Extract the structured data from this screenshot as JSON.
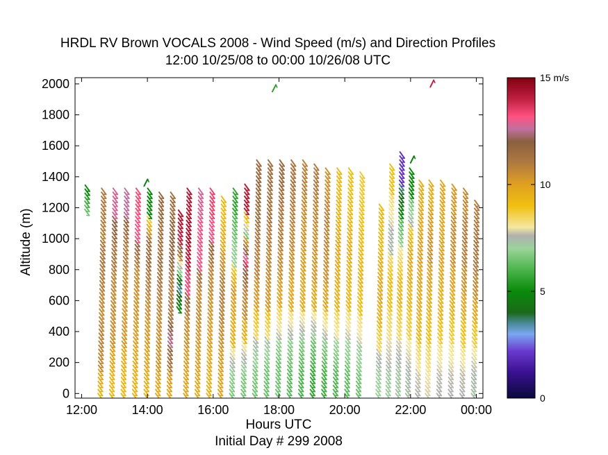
{
  "chart_data": {
    "type": "heatmap",
    "title": "HRDL RV Brown VOCALS 2008 - Wind Speed (m/s) and Direction Profiles",
    "subtitle": "12:00 10/25/08 to 00:00 10/26/08  UTC",
    "xlabel": "Hours UTC",
    "ylabel": "Altitude (m)",
    "note": "Initial Day # 299  2008",
    "xlim": [
      11.8,
      24.2
    ],
    "ylim": [
      -30,
      2040
    ],
    "x_ticks": [
      {
        "value": 12,
        "label": "12:00"
      },
      {
        "value": 14,
        "label": "14:00"
      },
      {
        "value": 16,
        "label": "16:00"
      },
      {
        "value": 18,
        "label": "18:00"
      },
      {
        "value": 20,
        "label": "20:00"
      },
      {
        "value": 22,
        "label": "22:00"
      },
      {
        "value": 24,
        "label": "00:00"
      }
    ],
    "y_ticks": [
      0,
      200,
      400,
      600,
      800,
      1000,
      1200,
      1400,
      1600,
      1800,
      2000
    ],
    "y_tick_labels": [
      "0",
      "200",
      "400",
      "600",
      "800",
      "1000",
      "1200",
      "1400",
      "1600",
      "1800",
      "2000"
    ],
    "colorbar": {
      "range": [
        0,
        15
      ],
      "ticks": [
        {
          "value": 0,
          "label": "0"
        },
        {
          "value": 5,
          "label": "5"
        },
        {
          "value": 10,
          "label": "10"
        },
        {
          "value": 15,
          "label": "15 m/s"
        }
      ],
      "stops": [
        {
          "v": 0,
          "color": "#0a0a3c"
        },
        {
          "v": 1.2,
          "color": "#3a1090"
        },
        {
          "v": 2.2,
          "color": "#6a3ad0"
        },
        {
          "v": 3.0,
          "color": "#7aa8f0"
        },
        {
          "v": 3.5,
          "color": "#4a8a9a"
        },
        {
          "v": 4.0,
          "color": "#1a6a1a"
        },
        {
          "v": 5.0,
          "color": "#0a8a0a"
        },
        {
          "v": 6.0,
          "color": "#4ab44a"
        },
        {
          "v": 7.0,
          "color": "#9ad49a"
        },
        {
          "v": 7.6,
          "color": "#b0b0b0"
        },
        {
          "v": 8.0,
          "color": "#f4e8a0"
        },
        {
          "v": 9.0,
          "color": "#f0c010"
        },
        {
          "v": 10.0,
          "color": "#e0a020"
        },
        {
          "v": 11.0,
          "color": "#b07a40"
        },
        {
          "v": 12.0,
          "color": "#8a6040"
        },
        {
          "v": 12.6,
          "color": "#c070a0"
        },
        {
          "v": 13.2,
          "color": "#ff5080"
        },
        {
          "v": 14.0,
          "color": "#c02040"
        },
        {
          "v": 15.0,
          "color": "#800010"
        }
      ]
    },
    "profiles": [
      {
        "t": 12.0,
        "bottom": 1190,
        "top": 1350,
        "speed": [
          6.5,
          6.0,
          5.5,
          5.0
        ]
      },
      {
        "t": 12.5,
        "bottom": 0,
        "top": 1340,
        "speed": [
          9.2,
          10.6,
          10.8,
          10.5,
          10.8,
          11.2,
          10.8,
          11.0
        ]
      },
      {
        "t": 12.85,
        "bottom": 0,
        "top": 1330,
        "speed": [
          9.2,
          9.6,
          10.4,
          10.5,
          10.6,
          11.0,
          11.5,
          12.8
        ]
      },
      {
        "t": 13.2,
        "bottom": 0,
        "top": 1330,
        "speed": [
          9.2,
          9.4,
          10.2,
          10.2,
          10.4,
          10.8,
          11.2,
          12.6
        ]
      },
      {
        "t": 13.55,
        "bottom": 0,
        "top": 1340,
        "speed": [
          9.4,
          9.6,
          10.0,
          10.3,
          10.4,
          10.8,
          13.0,
          13.3
        ]
      },
      {
        "t": 13.9,
        "bottom": 0,
        "top": 1330,
        "speed": [
          9.4,
          9.8,
          10.1,
          10.4,
          10.8,
          11.4,
          11.6,
          5.0
        ]
      },
      {
        "t": 14.25,
        "bottom": 0,
        "top": 1320,
        "speed": [
          9.6,
          10.3,
          10.4,
          10.6,
          11.0,
          11.4,
          11.2,
          11.6
        ]
      },
      {
        "t": 14.6,
        "bottom": 0,
        "top": 1310,
        "speed": [
          9.6,
          11.0,
          12.6,
          11.2,
          10.8,
          11.6,
          11.8,
          11.4
        ]
      },
      {
        "t": 14.85,
        "bottom": 560,
        "top": 1200,
        "speed": [
          5.0,
          3.0,
          6.0,
          10.5,
          14.0,
          14.2
        ]
      },
      {
        "t": 15.1,
        "bottom": 0,
        "top": 1330,
        "speed": [
          9.8,
          10.0,
          10.4,
          10.6,
          13.2,
          14.0,
          14.4,
          14.2
        ]
      },
      {
        "t": 15.45,
        "bottom": 0,
        "top": 1330,
        "speed": [
          9.6,
          10.0,
          10.2,
          10.6,
          10.4,
          13.0,
          13.2,
          12.8
        ]
      },
      {
        "t": 15.8,
        "bottom": 0,
        "top": 1330,
        "speed": [
          9.4,
          9.6,
          10.0,
          10.2,
          10.6,
          10.8,
          13.0,
          13.4
        ]
      },
      {
        "t": 16.15,
        "bottom": 0,
        "top": 1280,
        "speed": [
          9.8,
          10.0,
          10.4,
          10.8,
          11.0,
          10.6,
          9.6,
          9.2
        ]
      },
      {
        "t": 16.5,
        "bottom": 0,
        "top": 1340,
        "speed": [
          6.6,
          7.2,
          9.4,
          9.8,
          10.4,
          7.0,
          6.6,
          5.6
        ]
      },
      {
        "t": 16.85,
        "bottom": 0,
        "top": 1360,
        "speed": [
          6.5,
          7.0,
          9.2,
          10.6,
          10.8,
          14.0,
          6.0,
          14.2
        ]
      },
      {
        "t": 17.2,
        "bottom": 0,
        "top": 1520,
        "speed": [
          6.5,
          6.8,
          8.4,
          10.0,
          10.8,
          11.0,
          11.4,
          11.6
        ]
      },
      {
        "t": 17.55,
        "bottom": 0,
        "top": 1520,
        "speed": [
          6.4,
          6.6,
          8.2,
          10.2,
          10.6,
          10.8,
          11.2,
          11.4
        ]
      },
      {
        "t": 17.9,
        "bottom": 0,
        "top": 1530,
        "speed": [
          6.5,
          6.4,
          7.6,
          9.8,
          10.4,
          10.8,
          11.0,
          11.6
        ]
      },
      {
        "t": 18.25,
        "bottom": 0,
        "top": 1520,
        "speed": [
          6.2,
          6.4,
          7.4,
          9.6,
          10.2,
          10.6,
          10.8,
          11.2
        ]
      },
      {
        "t": 18.6,
        "bottom": 0,
        "top": 1510,
        "speed": [
          6.0,
          6.2,
          7.2,
          9.6,
          10.0,
          10.2,
          10.4,
          10.8
        ]
      },
      {
        "t": 18.95,
        "bottom": 0,
        "top": 1500,
        "speed": [
          5.6,
          6.0,
          7.0,
          9.6,
          10.2,
          10.4,
          10.6,
          11.0
        ]
      },
      {
        "t": 19.3,
        "bottom": 0,
        "top": 1480,
        "speed": [
          5.8,
          6.2,
          7.4,
          9.8,
          10.4,
          10.6,
          10.8,
          10.4
        ]
      },
      {
        "t": 19.65,
        "bottom": 0,
        "top": 1470,
        "speed": [
          6.0,
          6.4,
          7.8,
          9.4,
          9.6,
          9.8,
          9.4,
          9.2
        ]
      },
      {
        "t": 20.0,
        "bottom": 0,
        "top": 1470,
        "speed": [
          6.2,
          6.6,
          7.6,
          9.2,
          9.4,
          9.6,
          9.2,
          9.0
        ]
      },
      {
        "t": 20.35,
        "bottom": 0,
        "top": 1440,
        "speed": [
          6.4,
          6.8,
          7.8,
          9.0,
          9.4,
          9.2,
          9.0,
          8.8
        ]
      },
      {
        "t": 20.95,
        "bottom": 0,
        "top": 1230,
        "speed": [
          7.0,
          7.2,
          8.4,
          9.4,
          9.8,
          9.6,
          9.2,
          9.2
        ]
      },
      {
        "t": 21.25,
        "bottom": 0,
        "top": 1490,
        "speed": [
          7.0,
          7.6,
          8.2,
          9.0,
          9.2,
          7.4,
          7.8,
          9.0
        ]
      },
      {
        "t": 21.55,
        "bottom": 0,
        "top": 1560,
        "speed": [
          7.2,
          7.4,
          8.4,
          9.4,
          9.0,
          7.0,
          5.0,
          2.0
        ]
      },
      {
        "t": 21.85,
        "bottom": 0,
        "top": 1480,
        "speed": [
          7.4,
          7.6,
          8.6,
          9.2,
          9.6,
          9.8,
          7.6,
          5.0
        ]
      },
      {
        "t": 22.15,
        "bottom": 0,
        "top": 1400,
        "speed": [
          7.6,
          8.0,
          9.2,
          9.6,
          9.8,
          10.0,
          9.8,
          9.6
        ]
      },
      {
        "t": 22.45,
        "bottom": 0,
        "top": 1400,
        "speed": [
          7.8,
          8.2,
          9.0,
          9.4,
          9.8,
          10.4,
          10.2,
          9.6
        ]
      },
      {
        "t": 22.8,
        "bottom": 0,
        "top": 1380,
        "speed": [
          7.6,
          7.8,
          8.8,
          9.4,
          9.6,
          10.0,
          9.8,
          9.8
        ]
      },
      {
        "t": 23.15,
        "bottom": 0,
        "top": 1360,
        "speed": [
          7.6,
          7.8,
          8.6,
          9.4,
          9.8,
          10.4,
          10.6,
          10.2
        ]
      },
      {
        "t": 23.5,
        "bottom": 0,
        "top": 1340,
        "speed": [
          7.6,
          7.8,
          8.8,
          9.6,
          10.2,
          10.8,
          11.0,
          10.6
        ]
      },
      {
        "t": 23.85,
        "bottom": 0,
        "top": 1260,
        "speed": [
          7.4,
          7.6,
          8.6,
          9.6,
          10.4,
          11.0,
          11.2,
          11.0
        ]
      }
    ],
    "isolated_barbs": [
      {
        "t": 17.8,
        "alt": 1950,
        "speed": 5.5
      },
      {
        "t": 22.6,
        "alt": 1980,
        "speed": 14.0
      },
      {
        "t": 13.9,
        "alt": 1340,
        "speed": 4.5
      },
      {
        "t": 22.0,
        "alt": 1490,
        "speed": 4.5
      }
    ]
  }
}
